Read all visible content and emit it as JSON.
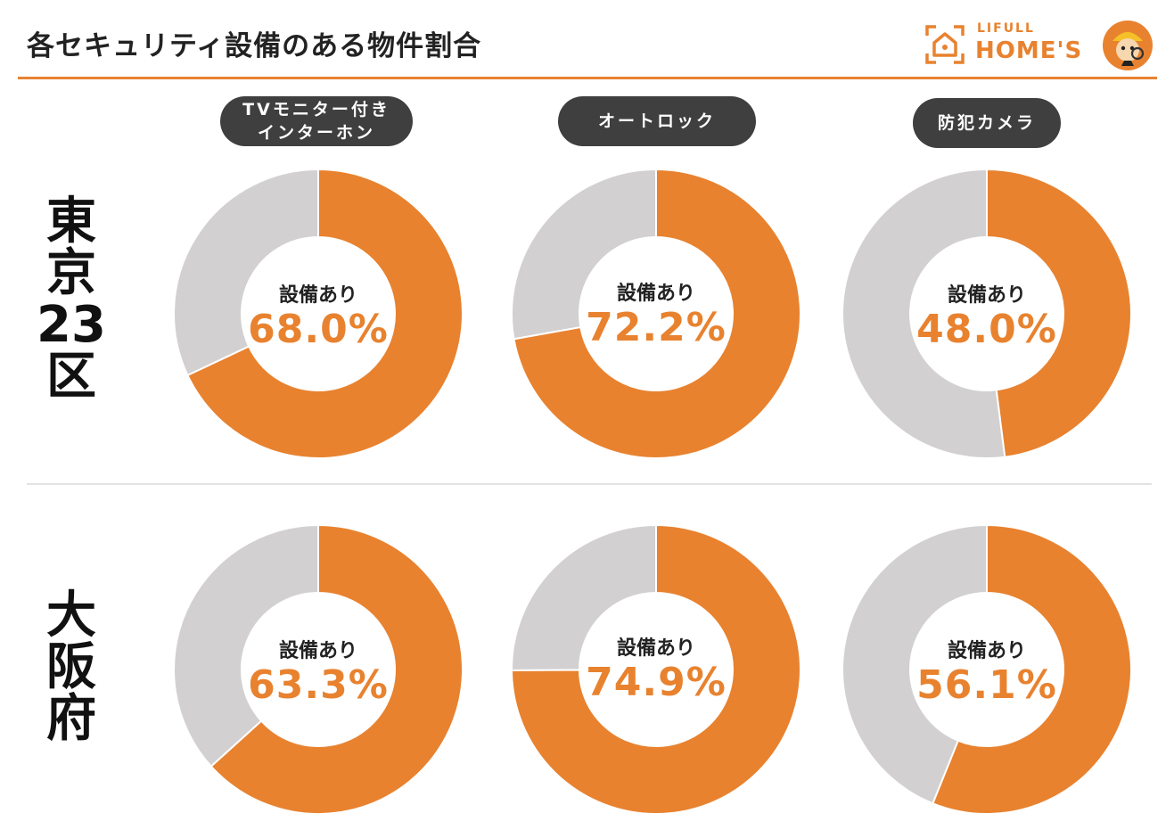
{
  "header": {
    "title": "各セキュリティ設備のある物件割合",
    "logo_line1": "LIFULL",
    "logo_line2": "HOME'S"
  },
  "colors": {
    "accent": "#e8822f",
    "remainder": "#d2d0d0",
    "pill": "#3f3f3f"
  },
  "columns": [
    {
      "line1": "TVモニター付き",
      "line2": "インターホン"
    },
    {
      "line1": "オートロック",
      "line2": ""
    },
    {
      "line1": "防犯カメラ",
      "line2": ""
    }
  ],
  "rows": [
    {
      "label_chars": [
        "東",
        "京",
        "23",
        "区"
      ]
    },
    {
      "label_chars": [
        "大",
        "阪",
        "府"
      ]
    }
  ],
  "chart_data": [
    {
      "type": "pie",
      "region": "東京23区",
      "category": "TVモニター付き インターホン",
      "center_label": "設備あり",
      "value": 68.0,
      "display": "68.0%"
    },
    {
      "type": "pie",
      "region": "東京23区",
      "category": "オートロック",
      "center_label": "設備あり",
      "value": 72.2,
      "display": "72.2%"
    },
    {
      "type": "pie",
      "region": "東京23区",
      "category": "防犯カメラ",
      "center_label": "設備あり",
      "value": 48.0,
      "display": "48.0%"
    },
    {
      "type": "pie",
      "region": "大阪府",
      "category": "TVモニター付き インターホン",
      "center_label": "設備あり",
      "value": 63.3,
      "display": "63.3%"
    },
    {
      "type": "pie",
      "region": "大阪府",
      "category": "オートロック",
      "center_label": "設備あり",
      "value": 74.9,
      "display": "74.9%"
    },
    {
      "type": "pie",
      "region": "大阪府",
      "category": "防犯カメラ",
      "center_label": "設備あり",
      "value": 56.1,
      "display": "56.1%"
    }
  ]
}
